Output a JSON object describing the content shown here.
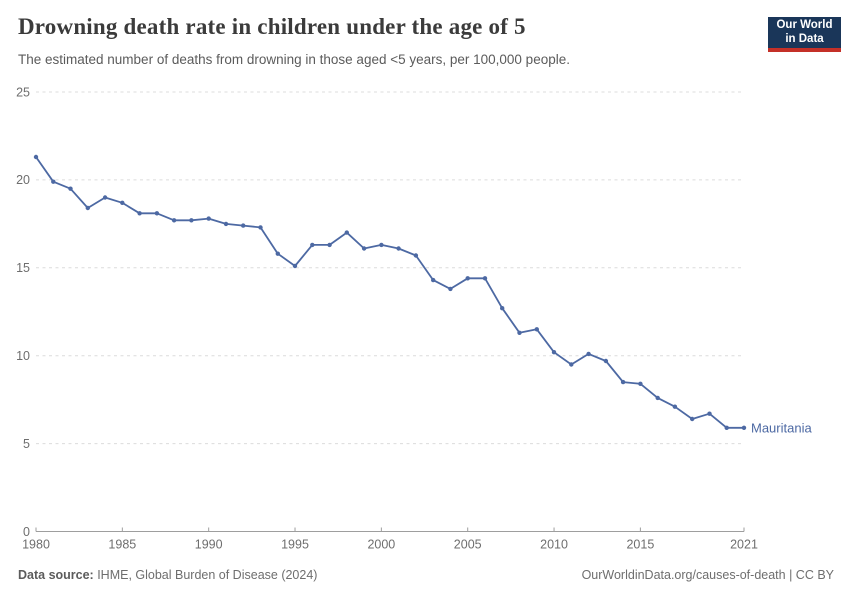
{
  "header": {
    "title": "Drowning death rate in children under the age of 5",
    "subtitle": "The estimated number of deaths from drowning in those aged <5 years, per 100,000 people.",
    "logo_line1": "Our World",
    "logo_line2": "in Data"
  },
  "footer": {
    "source_label": "Data source:",
    "source_text": " IHME, Global Burden of Disease (2024)",
    "link_text": "OurWorldinData.org/causes-of-death | CC BY"
  },
  "colors": {
    "line": "#4d69a3",
    "entity_label": "#4d69a3",
    "gridline": "#dcdcdc",
    "axis": "#9e9e9e",
    "tick_label": "#6e6e6e",
    "logo_navy": "#1a3659",
    "logo_red": "#c43028"
  },
  "chart_data": {
    "type": "line",
    "title": "Drowning death rate in children under the age of 5",
    "xlabel": "",
    "ylabel": "",
    "xlim": [
      1980,
      2021
    ],
    "ylim": [
      0,
      25
    ],
    "xticks": [
      1980,
      1985,
      1990,
      1995,
      2000,
      2005,
      2010,
      2015,
      2021
    ],
    "yticks": [
      0,
      5,
      10,
      15,
      20,
      25
    ],
    "grid": "horizontal-dashed",
    "legend_position": "end-of-line-label",
    "x": [
      1980,
      1981,
      1982,
      1983,
      1984,
      1985,
      1986,
      1987,
      1988,
      1989,
      1990,
      1991,
      1992,
      1993,
      1994,
      1995,
      1996,
      1997,
      1998,
      1999,
      2000,
      2001,
      2002,
      2003,
      2004,
      2005,
      2006,
      2007,
      2008,
      2009,
      2010,
      2011,
      2012,
      2013,
      2014,
      2015,
      2016,
      2017,
      2018,
      2019,
      2020,
      2021
    ],
    "series": [
      {
        "name": "Mauritania",
        "color": "#4d69a3",
        "values": [
          21.3,
          19.9,
          19.5,
          18.4,
          19.0,
          18.7,
          18.1,
          18.1,
          17.7,
          17.7,
          17.8,
          17.5,
          17.4,
          17.3,
          15.8,
          15.1,
          16.3,
          16.3,
          17.0,
          16.1,
          16.3,
          16.1,
          15.7,
          14.3,
          13.8,
          14.4,
          14.4,
          12.7,
          11.3,
          11.5,
          10.2,
          9.5,
          10.1,
          9.7,
          8.5,
          8.4,
          7.6,
          7.1,
          6.4,
          6.7,
          5.9,
          5.9
        ]
      }
    ]
  }
}
